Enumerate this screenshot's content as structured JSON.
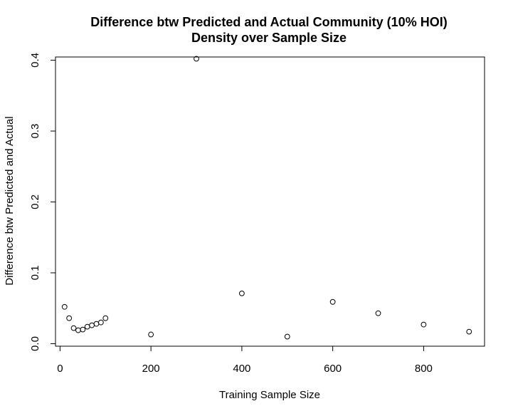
{
  "chart_data": {
    "type": "scatter",
    "title_line1": "Difference btw Predicted and Actual Community (10% HOI)",
    "title_line2": "Density over Sample Size",
    "xlabel": "Training Sample Size",
    "ylabel": "Difference btw Predicted and Actual",
    "xlim": [
      -10,
      934
    ],
    "ylim": [
      -0.0035,
      0.4045
    ],
    "x_ticks": [
      0,
      200,
      400,
      600,
      800
    ],
    "x_tick_labels": [
      "0",
      "200",
      "400",
      "600",
      "800"
    ],
    "y_ticks": [
      0.0,
      0.1,
      0.2,
      0.3,
      0.4
    ],
    "y_tick_labels": [
      "0.0",
      "0.1",
      "0.2",
      "0.3",
      "0.4"
    ],
    "grid": false,
    "legend": "none",
    "marker": "open-circle",
    "colors": {
      "marker": "#000000",
      "axis": "#000000",
      "background": "#ffffff"
    },
    "points": [
      {
        "x": 10,
        "y": 0.052
      },
      {
        "x": 20,
        "y": 0.036
      },
      {
        "x": 30,
        "y": 0.022
      },
      {
        "x": 40,
        "y": 0.019
      },
      {
        "x": 50,
        "y": 0.02
      },
      {
        "x": 60,
        "y": 0.024
      },
      {
        "x": 70,
        "y": 0.026
      },
      {
        "x": 80,
        "y": 0.028
      },
      {
        "x": 90,
        "y": 0.03
      },
      {
        "x": 100,
        "y": 0.036
      },
      {
        "x": 200,
        "y": 0.013
      },
      {
        "x": 300,
        "y": 0.402
      },
      {
        "x": 400,
        "y": 0.071
      },
      {
        "x": 500,
        "y": 0.01
      },
      {
        "x": 600,
        "y": 0.059
      },
      {
        "x": 700,
        "y": 0.043
      },
      {
        "x": 800,
        "y": 0.027
      },
      {
        "x": 900,
        "y": 0.017
      }
    ]
  }
}
